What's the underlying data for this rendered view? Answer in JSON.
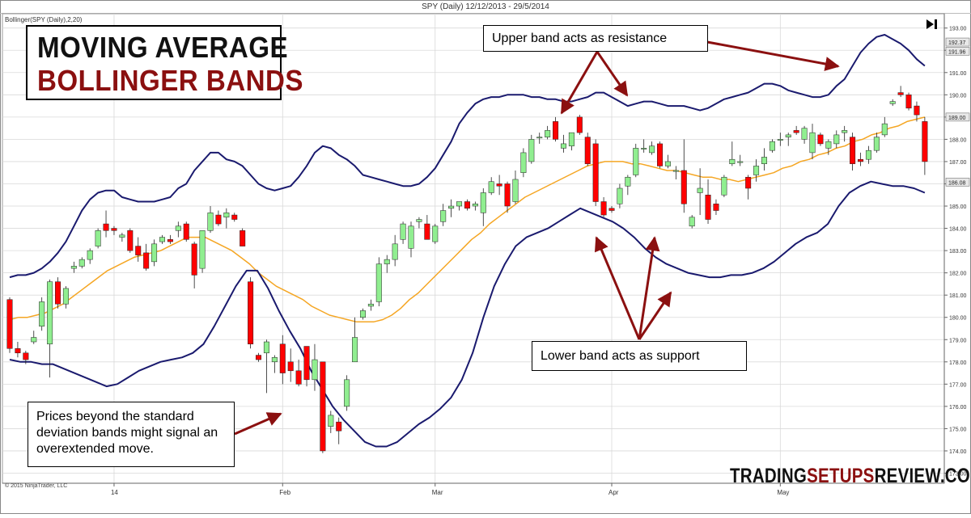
{
  "chart_title": "SPY (Daily)  12/12/2013 - 29/5/2014",
  "indicator_label": "Bollinger(SPY (Daily),2,20)",
  "copyright": "© 2015 NinjaTrader, LLC",
  "title_box": {
    "line1": "MOVING AVERAGE",
    "line2": "BOLLINGER BANDS"
  },
  "annotations": {
    "upper": "Upper band acts as resistance",
    "lower": "Lower band acts as support",
    "beyond": "Prices beyond the standard deviation bands might signal an overextended move."
  },
  "brand": {
    "part1": "TRADING",
    "part2": "SETUPS",
    "part3": "REVIEW.COM"
  },
  "colors": {
    "up": "#90ee90",
    "down": "#ff0000",
    "band": "#1a1a6e",
    "middle": "#f5a623",
    "arrow": "#8b1010",
    "grid": "#d9d9d9"
  },
  "chart_data": {
    "type": "candlestick",
    "title": "SPY (Daily)  12/12/2013 - 29/5/2014",
    "ylim": [
      172.6,
      193.6
    ],
    "y_ticks": [
      "193.00",
      "192.00",
      "191.00",
      "190.00",
      "189.00",
      "188.00",
      "187.00",
      "186.00",
      "185.00",
      "184.00",
      "183.00",
      "182.00",
      "181.00",
      "180.00",
      "179.00",
      "178.00",
      "177.00",
      "176.00",
      "175.00",
      "174.00",
      "173.00"
    ],
    "price_labels": [
      {
        "text": "192.37",
        "value": 192.37
      },
      {
        "text": "191.96",
        "value": 191.96
      },
      {
        "text": "189.00",
        "value": 189.0
      },
      {
        "text": "186.08",
        "value": 186.08
      }
    ],
    "x_labels": [
      {
        "text": "14",
        "index": 13
      },
      {
        "text": "Feb",
        "index": 34
      },
      {
        "text": "Mar",
        "index": 53
      },
      {
        "text": "Apr",
        "index": 75
      },
      {
        "text": "May",
        "index": 96
      }
    ],
    "bars": [
      [
        180.8,
        180.9,
        178.4,
        178.6
      ],
      [
        178.6,
        178.9,
        178.2,
        178.4
      ],
      [
        178.4,
        178.5,
        177.9,
        178.1
      ],
      [
        178.9,
        179.4,
        178.8,
        179.1
      ],
      [
        179.6,
        180.9,
        179.4,
        180.7
      ],
      [
        178.8,
        181.7,
        177.3,
        181.6
      ],
      [
        181.6,
        181.8,
        180.4,
        180.6
      ],
      [
        180.6,
        181.4,
        180.4,
        181.3
      ],
      [
        182.2,
        182.5,
        182.0,
        182.3
      ],
      [
        182.3,
        182.7,
        182.2,
        182.6
      ],
      [
        182.6,
        183.1,
        182.4,
        183.0
      ],
      [
        183.2,
        184.0,
        183.1,
        183.9
      ],
      [
        184.2,
        184.8,
        183.6,
        183.9
      ],
      [
        184.0,
        184.1,
        183.7,
        183.9
      ],
      [
        183.6,
        183.8,
        183.4,
        183.7
      ],
      [
        183.9,
        184.0,
        182.9,
        183.0
      ],
      [
        183.2,
        183.6,
        182.5,
        182.8
      ],
      [
        182.9,
        183.3,
        182.1,
        182.2
      ],
      [
        182.5,
        183.5,
        182.3,
        183.3
      ],
      [
        183.4,
        183.7,
        183.3,
        183.6
      ],
      [
        183.5,
        183.7,
        183.3,
        183.4
      ],
      [
        183.9,
        184.3,
        183.6,
        184.1
      ],
      [
        184.2,
        184.3,
        183.4,
        183.5
      ],
      [
        183.3,
        183.4,
        181.3,
        181.9
      ],
      [
        182.2,
        183.9,
        182.0,
        183.9
      ],
      [
        183.9,
        185.0,
        183.8,
        184.7
      ],
      [
        184.6,
        184.8,
        184.1,
        184.2
      ],
      [
        184.5,
        184.9,
        184.0,
        184.7
      ],
      [
        184.6,
        184.7,
        184.3,
        184.4
      ],
      [
        183.9,
        184.0,
        183.2,
        183.2
      ],
      [
        181.6,
        181.8,
        178.6,
        178.8
      ],
      [
        178.3,
        178.4,
        178.0,
        178.1
      ],
      [
        178.4,
        179.0,
        176.6,
        178.9
      ],
      [
        178.0,
        178.3,
        177.5,
        178.2
      ],
      [
        178.8,
        179.2,
        177.0,
        177.5
      ],
      [
        178.0,
        178.6,
        177.1,
        177.6
      ],
      [
        177.6,
        178.1,
        176.9,
        177.0
      ],
      [
        178.7,
        178.6,
        176.9,
        177.2
      ],
      [
        177.2,
        178.8,
        176.7,
        178.1
      ],
      [
        178.0,
        178.0,
        173.9,
        174.0
      ],
      [
        175.1,
        175.8,
        174.8,
        175.6
      ],
      [
        175.3,
        175.5,
        174.3,
        174.9
      ],
      [
        176.0,
        177.4,
        175.8,
        177.2
      ],
      [
        178.0,
        180.0,
        178.0,
        179.1
      ],
      [
        180.0,
        180.4,
        179.9,
        180.3
      ],
      [
        180.5,
        180.8,
        180.3,
        180.6
      ],
      [
        180.7,
        182.7,
        180.5,
        182.4
      ],
      [
        182.4,
        182.8,
        182.0,
        182.6
      ],
      [
        182.6,
        183.7,
        182.3,
        183.3
      ],
      [
        183.5,
        184.3,
        183.3,
        184.2
      ],
      [
        183.1,
        184.3,
        182.7,
        184.1
      ],
      [
        184.3,
        184.5,
        184.0,
        184.4
      ],
      [
        184.2,
        184.6,
        183.6,
        183.5
      ],
      [
        183.4,
        184.2,
        183.3,
        184.1
      ],
      [
        184.3,
        185.1,
        184.1,
        184.8
      ],
      [
        184.9,
        185.3,
        184.5,
        185.0
      ],
      [
        185.0,
        185.2,
        184.8,
        185.2
      ],
      [
        185.2,
        185.3,
        184.8,
        184.9
      ],
      [
        185.0,
        185.2,
        184.8,
        185.1
      ],
      [
        184.7,
        185.8,
        184.1,
        185.6
      ],
      [
        185.6,
        186.3,
        185.5,
        186.1
      ],
      [
        186.0,
        186.4,
        185.5,
        185.9
      ],
      [
        186.0,
        186.1,
        184.7,
        185.0
      ],
      [
        185.2,
        186.6,
        185.1,
        186.2
      ],
      [
        186.5,
        187.6,
        186.3,
        187.4
      ],
      [
        187.0,
        188.2,
        186.9,
        188.0
      ],
      [
        188.1,
        188.3,
        187.8,
        188.1
      ],
      [
        188.1,
        188.6,
        188.0,
        188.4
      ],
      [
        188.8,
        189.0,
        187.9,
        188.0
      ],
      [
        187.6,
        188.2,
        187.4,
        187.8
      ],
      [
        187.7,
        188.3,
        187.5,
        188.3
      ],
      [
        189.0,
        189.1,
        188.2,
        188.3
      ],
      [
        188.1,
        188.3,
        186.8,
        186.9
      ],
      [
        187.8,
        188.0,
        185.0,
        185.2
      ],
      [
        185.2,
        185.4,
        184.5,
        184.6
      ],
      [
        184.9,
        185.0,
        184.7,
        184.8
      ],
      [
        185.1,
        186.0,
        184.9,
        185.8
      ],
      [
        185.9,
        186.4,
        185.5,
        186.3
      ],
      [
        186.4,
        187.8,
        186.3,
        187.6
      ],
      [
        187.6,
        188.0,
        187.4,
        187.6
      ],
      [
        187.4,
        187.9,
        187.3,
        187.7
      ],
      [
        187.8,
        187.9,
        186.7,
        186.8
      ],
      [
        186.8,
        187.3,
        186.7,
        187.0
      ],
      [
        186.6,
        186.8,
        186.2,
        186.6
      ],
      [
        186.6,
        188.0,
        184.7,
        185.1
      ],
      [
        184.1,
        184.6,
        184.0,
        184.5
      ],
      [
        185.6,
        186.7,
        184.6,
        185.8
      ],
      [
        185.5,
        186.2,
        184.2,
        184.4
      ],
      [
        185.1,
        185.3,
        184.6,
        184.8
      ],
      [
        185.5,
        186.4,
        185.4,
        186.3
      ],
      [
        186.9,
        187.9,
        186.8,
        187.1
      ],
      [
        187.0,
        187.3,
        186.8,
        187.0
      ],
      [
        186.3,
        186.4,
        185.3,
        185.8
      ],
      [
        186.4,
        187.1,
        186.1,
        186.8
      ],
      [
        186.9,
        187.6,
        186.6,
        187.2
      ],
      [
        187.5,
        188.0,
        187.4,
        187.9
      ],
      [
        188.0,
        188.3,
        187.7,
        188.0
      ],
      [
        188.1,
        188.3,
        187.7,
        188.2
      ],
      [
        188.4,
        188.6,
        188.2,
        188.3
      ],
      [
        188.0,
        188.6,
        187.8,
        188.5
      ],
      [
        187.4,
        188.7,
        187.1,
        188.3
      ],
      [
        188.2,
        188.3,
        187.7,
        187.8
      ],
      [
        187.6,
        188.0,
        187.3,
        187.9
      ],
      [
        187.8,
        188.4,
        187.6,
        188.2
      ],
      [
        188.3,
        188.6,
        187.9,
        188.4
      ],
      [
        188.1,
        188.3,
        186.6,
        186.9
      ],
      [
        187.1,
        187.4,
        186.8,
        187.0
      ],
      [
        187.1,
        187.7,
        186.9,
        187.5
      ],
      [
        187.5,
        188.3,
        187.4,
        188.1
      ],
      [
        188.2,
        189.0,
        188.1,
        188.7
      ],
      [
        189.6,
        189.8,
        189.5,
        189.7
      ],
      [
        190.1,
        190.4,
        189.9,
        190.0
      ],
      [
        190.0,
        190.1,
        189.3,
        189.4
      ],
      [
        189.5,
        189.7,
        188.8,
        189.1
      ],
      [
        188.8,
        189.0,
        186.4,
        187.0
      ]
    ],
    "series": [
      {
        "name": "upper",
        "values": [
          181.8,
          181.9,
          181.9,
          182.0,
          182.2,
          182.5,
          182.9,
          183.4,
          184.1,
          184.8,
          185.3,
          185.6,
          185.7,
          185.7,
          185.4,
          185.3,
          185.2,
          185.2,
          185.2,
          185.3,
          185.4,
          185.8,
          186.0,
          186.6,
          187.0,
          187.4,
          187.4,
          187.1,
          187.0,
          186.8,
          186.4,
          186.0,
          185.8,
          185.7,
          185.8,
          185.9,
          186.3,
          186.8,
          187.4,
          187.7,
          187.6,
          187.3,
          187.1,
          186.8,
          186.4,
          186.3,
          186.2,
          186.1,
          186.0,
          185.9,
          185.9,
          186.0,
          186.3,
          186.7,
          187.3,
          187.9,
          188.7,
          189.2,
          189.6,
          189.8,
          189.9,
          189.9,
          190.0,
          190.0,
          190.0,
          189.9,
          189.9,
          189.8,
          189.8,
          189.7,
          189.7,
          189.8,
          189.9,
          190.1,
          190.1,
          189.9,
          189.7,
          189.5,
          189.6,
          189.7,
          189.7,
          189.6,
          189.5,
          189.5,
          189.5,
          189.4,
          189.3,
          189.4,
          189.6,
          189.8,
          189.9,
          190.0,
          190.1,
          190.3,
          190.5,
          190.5,
          190.4,
          190.2,
          190.1,
          190.0,
          189.9,
          189.9,
          190.0,
          190.4,
          190.7,
          191.3,
          191.9,
          192.3,
          192.6,
          192.7,
          192.5,
          192.3,
          192.0,
          191.6,
          191.3
        ]
      },
      {
        "name": "middle",
        "values": [
          179.9,
          180.0,
          180.0,
          180.1,
          180.2,
          180.4,
          180.6,
          180.9,
          181.2,
          181.5,
          181.8,
          182.1,
          182.3,
          182.5,
          182.7,
          182.8,
          182.9,
          183.0,
          183.2,
          183.4,
          183.6,
          183.6,
          183.6,
          183.4,
          183.2,
          183.0,
          182.7,
          182.4,
          182.0,
          181.7,
          181.4,
          181.2,
          181.0,
          180.8,
          180.5,
          180.3,
          180.1,
          180.0,
          179.9,
          179.8,
          179.8,
          179.8,
          179.9,
          180.1,
          180.4,
          180.8,
          181.1,
          181.5,
          181.9,
          182.3,
          182.7,
          183.1,
          183.5,
          183.8,
          184.2,
          184.5,
          184.8,
          185.1,
          185.4,
          185.6,
          185.8,
          186.0,
          186.2,
          186.4,
          186.6,
          186.8,
          186.9,
          187.0,
          187.0,
          187.0,
          186.9,
          186.9,
          186.8,
          186.7,
          186.6,
          186.6,
          186.5,
          186.4,
          186.3,
          186.3,
          186.2,
          186.2,
          186.1,
          186.2,
          186.3,
          186.4,
          186.5,
          186.7,
          186.8,
          187.0,
          187.1,
          187.3,
          187.4,
          187.6,
          187.7,
          187.9,
          188.0,
          188.2,
          188.3,
          188.5,
          188.6,
          188.8,
          188.9,
          189.0
        ]
      },
      {
        "name": "lower",
        "values": [
          178.1,
          178.0,
          178.0,
          177.9,
          177.9,
          177.7,
          177.5,
          177.3,
          177.1,
          176.9,
          177.0,
          177.3,
          177.6,
          177.8,
          178.0,
          178.1,
          178.2,
          178.4,
          178.8,
          179.6,
          180.5,
          181.4,
          182.1,
          182.1,
          181.3,
          180.3,
          179.4,
          178.6,
          177.6,
          176.8,
          176.0,
          175.4,
          174.9,
          174.4,
          174.2,
          174.2,
          174.4,
          174.8,
          175.2,
          175.5,
          175.9,
          176.4,
          177.2,
          178.4,
          180.0,
          181.4,
          182.4,
          183.2,
          183.6,
          183.8,
          184.0,
          184.3,
          184.6,
          184.9,
          184.7,
          184.5,
          184.3,
          184.0,
          183.6,
          183.1,
          182.7,
          182.4,
          182.2,
          182.0,
          181.9,
          181.8,
          181.8,
          181.9,
          181.9,
          182.0,
          182.2,
          182.5,
          182.9,
          183.3,
          183.6,
          183.8,
          184.2,
          185.0,
          185.6,
          185.9,
          186.1,
          186.0,
          185.9,
          185.9,
          185.8,
          185.6
        ]
      }
    ]
  }
}
